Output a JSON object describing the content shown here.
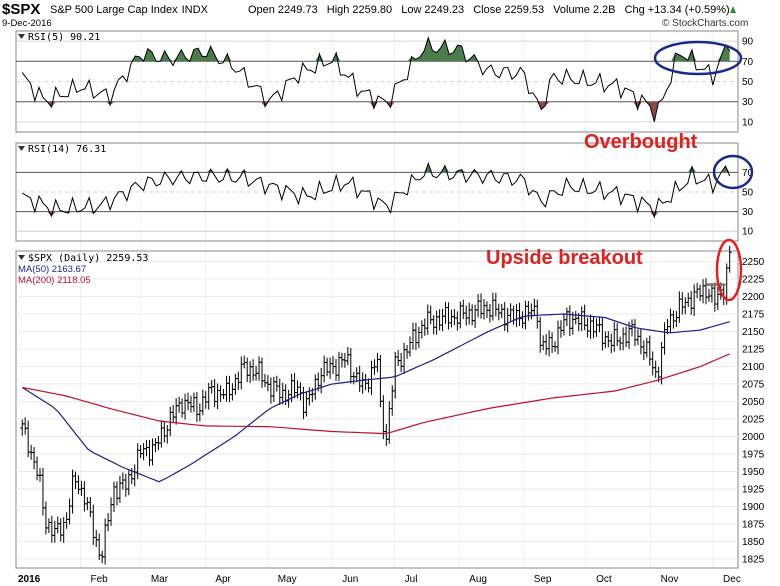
{
  "header": {
    "symbol": "$SPX",
    "name": "S&P 500 Large Cap Index",
    "exchange": "INDX",
    "date": "9-Dec-2016",
    "open_label": "Open",
    "open": "2249.73",
    "high_label": "High",
    "high": "2259.80",
    "low_label": "Low",
    "low": "2249.23",
    "close_label": "Close",
    "close": "2259.53",
    "volume_label": "Volume",
    "volume": "2.2B",
    "chg_label": "Chg",
    "chg": "+13.34 (+0.59%)",
    "watermark": "© StockCharts.com"
  },
  "annotations": {
    "overbought": "Overbought",
    "breakout": "Upside breakout"
  },
  "colors": {
    "rsi_line": "#000000",
    "rsi_fill_over": "#4b7c4b",
    "rsi_fill_under": "#8b4a4a",
    "ma50": "#1f1f8f",
    "ma200": "#c01030",
    "annotation": "#e1201f",
    "circle_blue": "#1a2a8a",
    "grid": "#c8c8c8"
  },
  "chart_data": [
    {
      "type": "line",
      "panel": "RSI(5)",
      "legend": "RSI(5) 90.21",
      "yticks": [
        10,
        30,
        50,
        70,
        90
      ],
      "ylim": [
        0,
        100
      ],
      "overbought": 70,
      "oversold": 30,
      "last_value": 90.21,
      "x": [
        "2016-01-04",
        "2016-01-15",
        "2016-02-01",
        "2016-02-15",
        "2016-03-01",
        "2016-03-15",
        "2016-04-01",
        "2016-04-15",
        "2016-05-02",
        "2016-05-16",
        "2016-06-01",
        "2016-06-15",
        "2016-06-27",
        "2016-07-15",
        "2016-08-01",
        "2016-08-15",
        "2016-09-01",
        "2016-09-09",
        "2016-09-15",
        "2016-10-03",
        "2016-10-17",
        "2016-11-01",
        "2016-11-04",
        "2016-11-15",
        "2016-12-01",
        "2016-12-09"
      ],
      "values": [
        55,
        30,
        45,
        35,
        78,
        72,
        80,
        65,
        30,
        58,
        72,
        40,
        28,
        84,
        82,
        60,
        58,
        20,
        55,
        50,
        45,
        25,
        16,
        80,
        55,
        90
      ]
    },
    {
      "type": "line",
      "panel": "RSI(14)",
      "legend": "RSI(14) 76.31",
      "yticks": [
        10,
        30,
        50,
        70
      ],
      "ylim": [
        0,
        100
      ],
      "overbought": 70,
      "oversold": 30,
      "last_value": 76.31,
      "x": [
        "2016-01-04",
        "2016-01-20",
        "2016-02-11",
        "2016-03-01",
        "2016-03-15",
        "2016-04-01",
        "2016-04-20",
        "2016-05-19",
        "2016-06-08",
        "2016-06-27",
        "2016-07-15",
        "2016-08-15",
        "2016-09-01",
        "2016-09-09",
        "2016-09-22",
        "2016-10-17",
        "2016-11-04",
        "2016-11-21",
        "2016-12-01",
        "2016-12-09"
      ],
      "values": [
        45,
        32,
        36,
        58,
        64,
        66,
        64,
        45,
        60,
        35,
        70,
        66,
        62,
        40,
        56,
        48,
        33,
        66,
        58,
        76
      ]
    },
    {
      "type": "ohlc",
      "panel": "$SPX (Daily)",
      "legend": "$SPX (Daily) 2259.53",
      "ylim": [
        1812,
        2265
      ],
      "yticks": [
        1825,
        1850,
        1875,
        1900,
        1925,
        1950,
        1975,
        2000,
        2025,
        2050,
        2075,
        2100,
        2125,
        2150,
        2175,
        2200,
        2225,
        2250
      ],
      "xticks": [
        "2016",
        "Feb",
        "Mar",
        "Apr",
        "May",
        "Jun",
        "Jul",
        "Aug",
        "Sep",
        "Oct",
        "Nov",
        "Dec"
      ],
      "x": [
        "2016-01-04",
        "2016-01-07",
        "2016-01-12",
        "2016-01-15",
        "2016-01-20",
        "2016-01-25",
        "2016-01-29",
        "2016-02-03",
        "2016-02-08",
        "2016-02-11",
        "2016-02-17",
        "2016-02-23",
        "2016-03-01",
        "2016-03-08",
        "2016-03-14",
        "2016-03-21",
        "2016-03-28",
        "2016-04-04",
        "2016-04-11",
        "2016-04-20",
        "2016-04-27",
        "2016-05-02",
        "2016-05-09",
        "2016-05-16",
        "2016-05-19",
        "2016-05-26",
        "2016-06-01",
        "2016-06-08",
        "2016-06-13",
        "2016-06-16",
        "2016-06-23",
        "2016-06-24",
        "2016-06-27",
        "2016-07-01",
        "2016-07-08",
        "2016-07-15",
        "2016-07-25",
        "2016-08-01",
        "2016-08-15",
        "2016-08-26",
        "2016-09-01",
        "2016-09-08",
        "2016-09-09",
        "2016-09-14",
        "2016-09-22",
        "2016-10-03",
        "2016-10-13",
        "2016-10-24",
        "2016-11-01",
        "2016-11-04",
        "2016-11-09",
        "2016-11-14",
        "2016-11-21",
        "2016-11-29",
        "2016-12-02",
        "2016-12-06",
        "2016-12-09"
      ],
      "close": [
        2012,
        1990,
        1940,
        1880,
        1860,
        1880,
        1940,
        1915,
        1853,
        1829,
        1925,
        1930,
        1978,
        1985,
        2020,
        2050,
        2040,
        2065,
        2060,
        2100,
        2090,
        2070,
        2060,
        2070,
        2040,
        2090,
        2100,
        2110,
        2080,
        2070,
        2110,
        2040,
        2000,
        2100,
        2130,
        2162,
        2170,
        2172,
        2185,
        2170,
        2175,
        2180,
        2128,
        2130,
        2170,
        2160,
        2135,
        2150,
        2110,
        2085,
        2163,
        2180,
        2200,
        2210,
        2191,
        2212,
        2259
      ],
      "series": [
        {
          "name": "MA(50)",
          "legend": "MA(50) 2163.67",
          "last_value": 2163.67,
          "x": [
            "2016-01-04",
            "2016-01-20",
            "2016-02-05",
            "2016-02-22",
            "2016-03-10",
            "2016-03-25",
            "2016-04-15",
            "2016-05-02",
            "2016-05-16",
            "2016-06-01",
            "2016-06-15",
            "2016-07-01",
            "2016-07-20",
            "2016-08-15",
            "2016-09-01",
            "2016-09-20",
            "2016-10-10",
            "2016-10-25",
            "2016-11-10",
            "2016-11-25",
            "2016-12-09"
          ],
          "values": [
            2070,
            2040,
            1980,
            1955,
            1935,
            1960,
            2000,
            2040,
            2060,
            2075,
            2080,
            2085,
            2110,
            2150,
            2172,
            2175,
            2170,
            2155,
            2148,
            2152,
            2164
          ]
        },
        {
          "name": "MA(200)",
          "legend": "MA(200) 2118.05",
          "last_value": 2118.05,
          "x": [
            "2016-01-04",
            "2016-01-25",
            "2016-02-15",
            "2016-03-10",
            "2016-04-01",
            "2016-05-02",
            "2016-06-01",
            "2016-06-27",
            "2016-07-15",
            "2016-08-15",
            "2016-09-15",
            "2016-10-15",
            "2016-11-04",
            "2016-11-25",
            "2016-12-09"
          ],
          "values": [
            2070,
            2058,
            2040,
            2022,
            2015,
            2014,
            2007,
            2004,
            2020,
            2040,
            2055,
            2065,
            2080,
            2100,
            2118
          ]
        }
      ],
      "resistance": {
        "value": 2217,
        "from": "2016-11-28",
        "to": "2016-12-07"
      }
    }
  ]
}
